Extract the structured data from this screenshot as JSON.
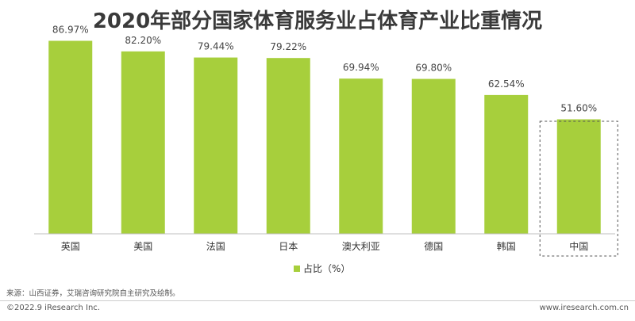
{
  "title": "2020年部分国家体育服务业占体育产业比重情况",
  "chart_data": {
    "type": "bar",
    "categories": [
      "英国",
      "美国",
      "法国",
      "日本",
      "澳大利亚",
      "德国",
      "韩国",
      "中国"
    ],
    "series": [
      {
        "name": "占比（%）",
        "values": [
          86.97,
          82.2,
          79.44,
          79.22,
          69.94,
          69.8,
          62.54,
          51.6
        ]
      }
    ],
    "data_labels": [
      "86.97%",
      "82.20%",
      "79.44%",
      "79.22%",
      "69.94%",
      "69.80%",
      "62.54%",
      "51.60%"
    ],
    "ylim": [
      0,
      100
    ],
    "grid": false,
    "legend_position": "bottom",
    "highlighted_category": "中国",
    "colors": {
      "bar": "#A7CF3C",
      "highlight_border": "#555555"
    }
  },
  "source": "来源：山西证券，艾瑞咨询研究院自主研究及绘制。",
  "footer": {
    "copyright": "©2022.9 iResearch Inc.",
    "website": "www.iresearch.com.cn"
  }
}
